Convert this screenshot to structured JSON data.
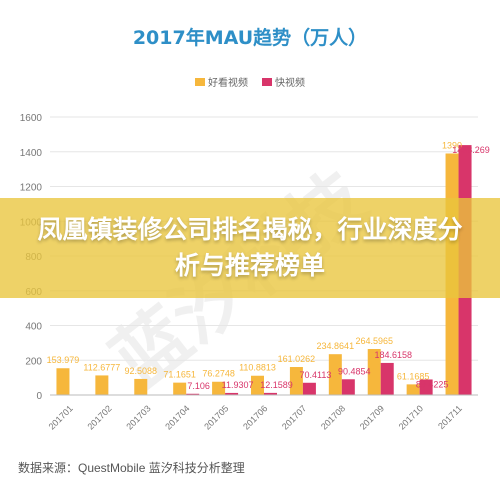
{
  "chart_data": {
    "type": "bar",
    "title": "2017年MAU趋势（万人）",
    "categories": [
      "201701",
      "201702",
      "201703",
      "201704",
      "201705",
      "201706",
      "201707",
      "201708",
      "201709",
      "201710",
      "201711"
    ],
    "series": [
      {
        "name": "好看视频",
        "color": "#F6B73C",
        "values": [
          153.979,
          112.6777,
          92.5088,
          71.1651,
          76.2748,
          110.8813,
          161.0262,
          234.8641,
          264.5965,
          61.1685,
          1390
        ],
        "labels": [
          "153.979",
          "112.6777",
          "92.5088",
          "71.1651",
          "76.2748",
          "110.8813",
          "161.0262",
          "234.8641",
          "264.5965",
          "61.1685",
          "1390"
        ]
      },
      {
        "name": "快视频",
        "color": "#D8356A",
        "values": [
          0,
          0,
          0,
          7.106,
          11.9307,
          12.1589,
          70.4113,
          90.4854,
          184.6158,
          89.4225,
          1438.269
        ],
        "labels": [
          "",
          "",
          "",
          "7.106",
          "11.9307",
          "12.1589",
          "70.4113",
          "90.4854",
          "184.6158",
          "89.4225",
          "1438.269"
        ]
      }
    ],
    "y_ticks": [
      "0",
      "200",
      "400",
      "600",
      "800",
      "1000",
      "1200",
      "1400",
      "1600"
    ],
    "ylim": [
      0,
      1600
    ],
    "grid": true,
    "legend": "top-center"
  },
  "overlay": {
    "title": "凤凰镇装修公司排名揭秘，行业深度分析与推荐榜单"
  },
  "watermark_text": "蓝汐科技",
  "source": "数据来源：QuestMobile 蓝汐科技分析整理"
}
